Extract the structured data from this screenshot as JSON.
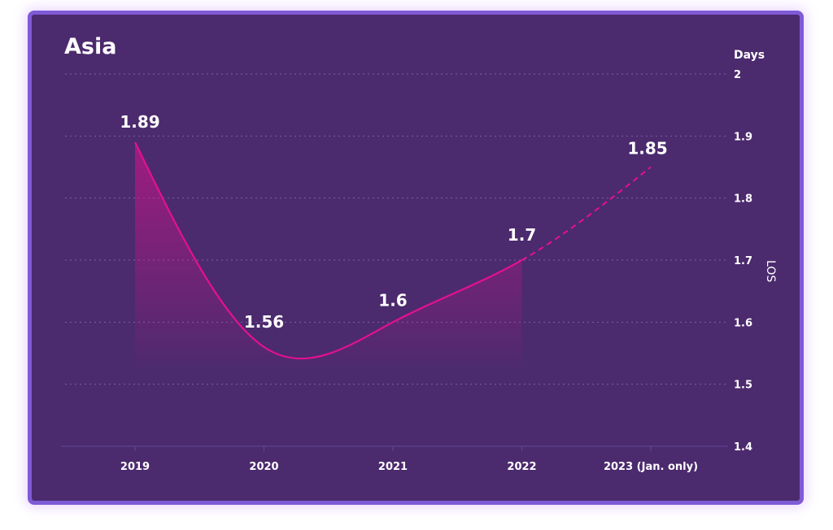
{
  "chart_data": {
    "type": "line",
    "title": "Asia",
    "ylabel": "LOS",
    "yunit": "Days",
    "categories": [
      "2019",
      "2020",
      "2021",
      "2022",
      "2023 (Jan. only)"
    ],
    "values": [
      1.89,
      1.56,
      1.6,
      1.7,
      1.85
    ],
    "data_labels": [
      "1.89",
      "1.56",
      "1.6",
      "1.7",
      "1.85"
    ],
    "projected_from_index": 3,
    "ylim": [
      1.4,
      2
    ],
    "yticks": [
      "1.4",
      "1.5",
      "1.6",
      "1.7",
      "1.8",
      "1.9",
      "2"
    ],
    "grid": true,
    "line_color": "#e5108f",
    "background_color": "#4c2a6e",
    "border_color": "#7f5ad6"
  }
}
